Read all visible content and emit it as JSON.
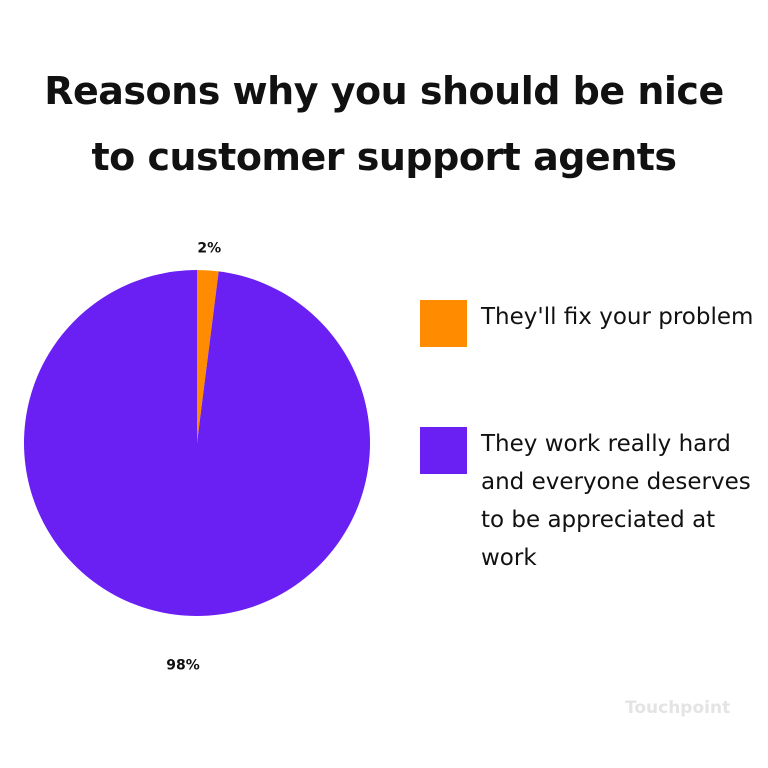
{
  "chart_data": {
    "type": "pie",
    "title": "Reasons why you should be nice to customer support agents",
    "watermark": "Touchpoint",
    "series": [
      {
        "name": "They'll fix your problem",
        "color": "#ff8c00",
        "values": [
          2
        ],
        "value_labels": [
          "2%"
        ]
      },
      {
        "name": "They work really hard and everyone deserves to be appreciated at work",
        "color": "#6a1ff3",
        "values": [
          98
        ],
        "value_labels": [
          "98%"
        ]
      }
    ],
    "legend": "right"
  }
}
